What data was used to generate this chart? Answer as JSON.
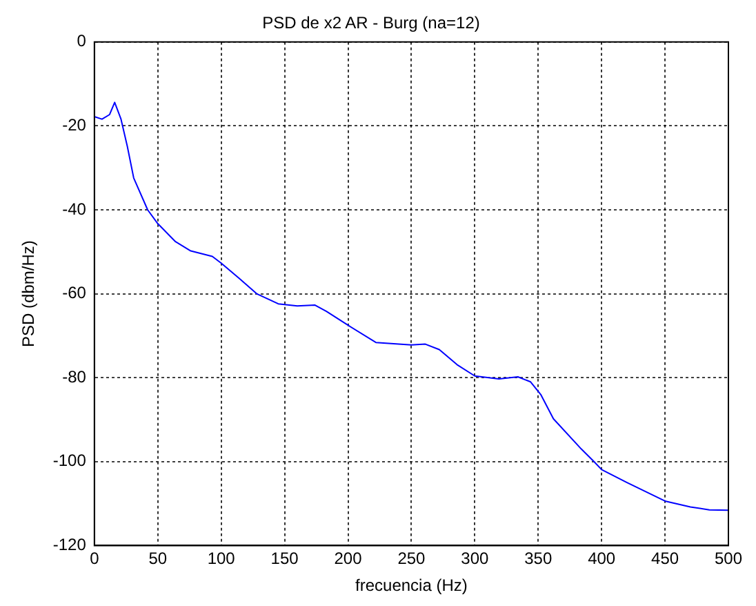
{
  "chart_data": {
    "type": "line",
    "title": "PSD de x2 AR - Burg (na=12)",
    "xlabel": "frecuencia (Hz)",
    "ylabel": "PSD (dbm/Hz)",
    "x": [
      0,
      6,
      12,
      16,
      21,
      26,
      31,
      42,
      50,
      64,
      76,
      93,
      100,
      114,
      128,
      145,
      160,
      174,
      183,
      200,
      222,
      250,
      261,
      272,
      286,
      300,
      319,
      334,
      344,
      352,
      362,
      384,
      394,
      400,
      420,
      450,
      470,
      485,
      500
    ],
    "series": [
      {
        "color": "#0000ff",
        "values": [
          -17.8,
          -18.4,
          -17.3,
          -14.4,
          -18.4,
          -24.9,
          -32.4,
          -40,
          -43.3,
          -47.6,
          -49.8,
          -51.1,
          -52.7,
          -56.3,
          -60,
          -62.4,
          -62.9,
          -62.7,
          -64.2,
          -67.5,
          -71.6,
          -72.2,
          -72,
          -73.3,
          -76.9,
          -79.6,
          -80.3,
          -79.8,
          -81,
          -84,
          -89.8,
          -97,
          -100,
          -101.9,
          -105,
          -109.4,
          -110.8,
          -111.5,
          -111.6
        ]
      }
    ],
    "xlim": [
      0,
      500
    ],
    "xticks": [
      0,
      50,
      100,
      150,
      200,
      250,
      300,
      350,
      400,
      450,
      500
    ],
    "ylim": [
      -120,
      0
    ],
    "yticks": [
      -120,
      -100,
      -80,
      -60,
      -40,
      -20,
      0
    ],
    "grid": true,
    "legend": false,
    "marker": "none",
    "line_style": "solid"
  }
}
